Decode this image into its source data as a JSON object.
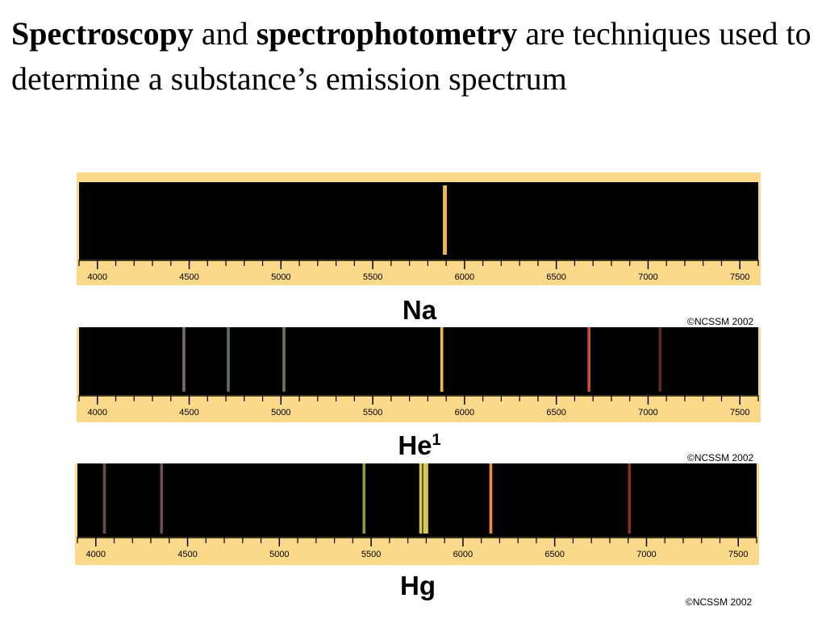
{
  "slide": {
    "title_bold_1": "Spectroscopy",
    "title_text_1": " and ",
    "title_bold_2": "spectrophotometry",
    "title_text_2": " are techniques used to determine a substance’s emission spectrum"
  },
  "axis_ticks": [
    4000,
    4500,
    5000,
    5500,
    6000,
    6500,
    7000,
    7500
  ],
  "axis_range": [
    3900,
    7600
  ],
  "spectra": [
    {
      "element": "Na",
      "superscript": "",
      "copyright": "©NCSSM 2002",
      "lines": [
        {
          "wavelength": 5890,
          "color": "#e8b84a"
        },
        {
          "wavelength": 5896,
          "color": "#e8b84a"
        }
      ]
    },
    {
      "element": "He",
      "superscript": "1",
      "copyright": "©NCSSM 2002",
      "lines": [
        {
          "wavelength": 4471,
          "color": "#7a6a6a"
        },
        {
          "wavelength": 4713,
          "color": "#5d7060"
        },
        {
          "wavelength": 5016,
          "color": "#6a7a52"
        },
        {
          "wavelength": 5876,
          "color": "#f0b84a"
        },
        {
          "wavelength": 6678,
          "color": "#c8502e"
        },
        {
          "wavelength": 7065,
          "color": "#5a2a20"
        }
      ]
    },
    {
      "element": "Hg",
      "superscript": "",
      "copyright": "©NCSSM 2002",
      "lines": [
        {
          "wavelength": 4047,
          "color": "#6a4e4a"
        },
        {
          "wavelength": 4358,
          "color": "#6a4e58"
        },
        {
          "wavelength": 5461,
          "color": "#8a9a3a"
        },
        {
          "wavelength": 5770,
          "color": "#d8c850"
        },
        {
          "wavelength": 5791,
          "color": "#d8c850"
        },
        {
          "wavelength": 5803,
          "color": "#d8c850"
        },
        {
          "wavelength": 6152,
          "color": "#e8903a"
        },
        {
          "wavelength": 6907,
          "color": "#8a3020"
        }
      ]
    }
  ]
}
